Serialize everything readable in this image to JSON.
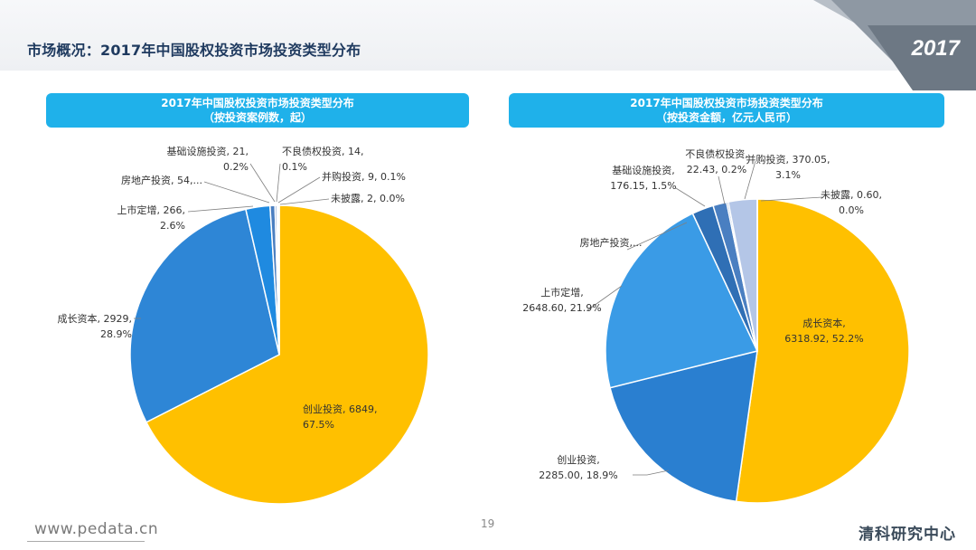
{
  "page": {
    "title": "市场概况：2017年中国股权投资市场投资类型分布",
    "year_badge": "2017",
    "footer_url": "www.pedata.cn",
    "page_number": "19",
    "footer_brand": "清科研究中心"
  },
  "colors": {
    "header_blue": "#1fb1ea",
    "title_navy": "#1f3a5f"
  },
  "chart_data": [
    {
      "type": "pie",
      "title_line1": "2017年中国股权投资市场投资类型分布",
      "title_line2": "（按投资案例数，起）",
      "slices": [
        {
          "name": "创业投资",
          "value": 6849,
          "percent": "67.5%",
          "color": "#ffc000",
          "label_line1": "创业投资, 6849,",
          "label_line2": "67.5%"
        },
        {
          "name": "成长资本",
          "value": 2929,
          "percent": "28.9%",
          "color": "#2e86d6",
          "label_line1": "成长资本, 2929,",
          "label_line2": "28.9%"
        },
        {
          "name": "上市定增",
          "value": 266,
          "percent": "2.6%",
          "color": "#1f8ae0",
          "label_line1": "上市定增, 266,",
          "label_line2": "2.6%"
        },
        {
          "name": "房地产投资",
          "value": 54,
          "percent": "",
          "color": "#4a7fc1",
          "label_line1": "房地产投资, 54,...",
          "label_line2": ""
        },
        {
          "name": "基础设施投资",
          "value": 21,
          "percent": "0.2%",
          "color": "#6a8fc8",
          "label_line1": "基础设施投资, 21,",
          "label_line2": "0.2%"
        },
        {
          "name": "不良债权投资",
          "value": 14,
          "percent": "0.1%",
          "color": "#8fa9d6",
          "label_line1": "不良债权投资, 14,",
          "label_line2": "0.1%"
        },
        {
          "name": "并购投资",
          "value": 9,
          "percent": "0.1%",
          "color": "#b4c6e7",
          "label_line1": "并购投资, 9, 0.1%",
          "label_line2": ""
        },
        {
          "name": "未披露",
          "value": 2,
          "percent": "0.0%",
          "color": "#dae3f3",
          "label_line1": "未披露, 2, 0.0%",
          "label_line2": ""
        }
      ]
    },
    {
      "type": "pie",
      "title_line1": "2017年中国股权投资市场投资类型分布",
      "title_line2": "（按投资金额，亿元人民币）",
      "slices": [
        {
          "name": "成长资本",
          "value": 6318.92,
          "percent": "52.2%",
          "color": "#ffc000",
          "label_line1": "成长资本,",
          "label_line2": "6318.92, 52.2%"
        },
        {
          "name": "创业投资",
          "value": 2285.0,
          "percent": "18.9%",
          "color": "#2a7fd0",
          "label_line1": "创业投资,",
          "label_line2": "2285.00, 18.9%"
        },
        {
          "name": "上市定增",
          "value": 2648.6,
          "percent": "21.9%",
          "color": "#3a9be6",
          "label_line1": "上市定增,",
          "label_line2": "2648.60, 21.9%"
        },
        {
          "name": "房地产投资",
          "value": 0,
          "percent": "",
          "color": "#2f6fb5",
          "label_line1": "房地产投资,...",
          "label_line2": ""
        },
        {
          "name": "基础设施投资",
          "value": 176.15,
          "percent": "1.5%",
          "color": "#4a7fc1",
          "label_line1": "基础设施投资,",
          "label_line2": "176.15, 1.5%"
        },
        {
          "name": "不良债权投资",
          "value": 22.43,
          "percent": "0.2%",
          "color": "#6a8fc8",
          "label_line1": "不良债权投资,",
          "label_line2": "22.43, 0.2%"
        },
        {
          "name": "并购投资",
          "value": 370.05,
          "percent": "3.1%",
          "color": "#b4c6e7",
          "label_line1": "并购投资, 370.05,",
          "label_line2": "3.1%"
        },
        {
          "name": "未披露",
          "value": 0.6,
          "percent": "0.0%",
          "color": "#dae3f3",
          "label_line1": "未披露, 0.60,",
          "label_line2": "0.0%"
        }
      ]
    }
  ]
}
